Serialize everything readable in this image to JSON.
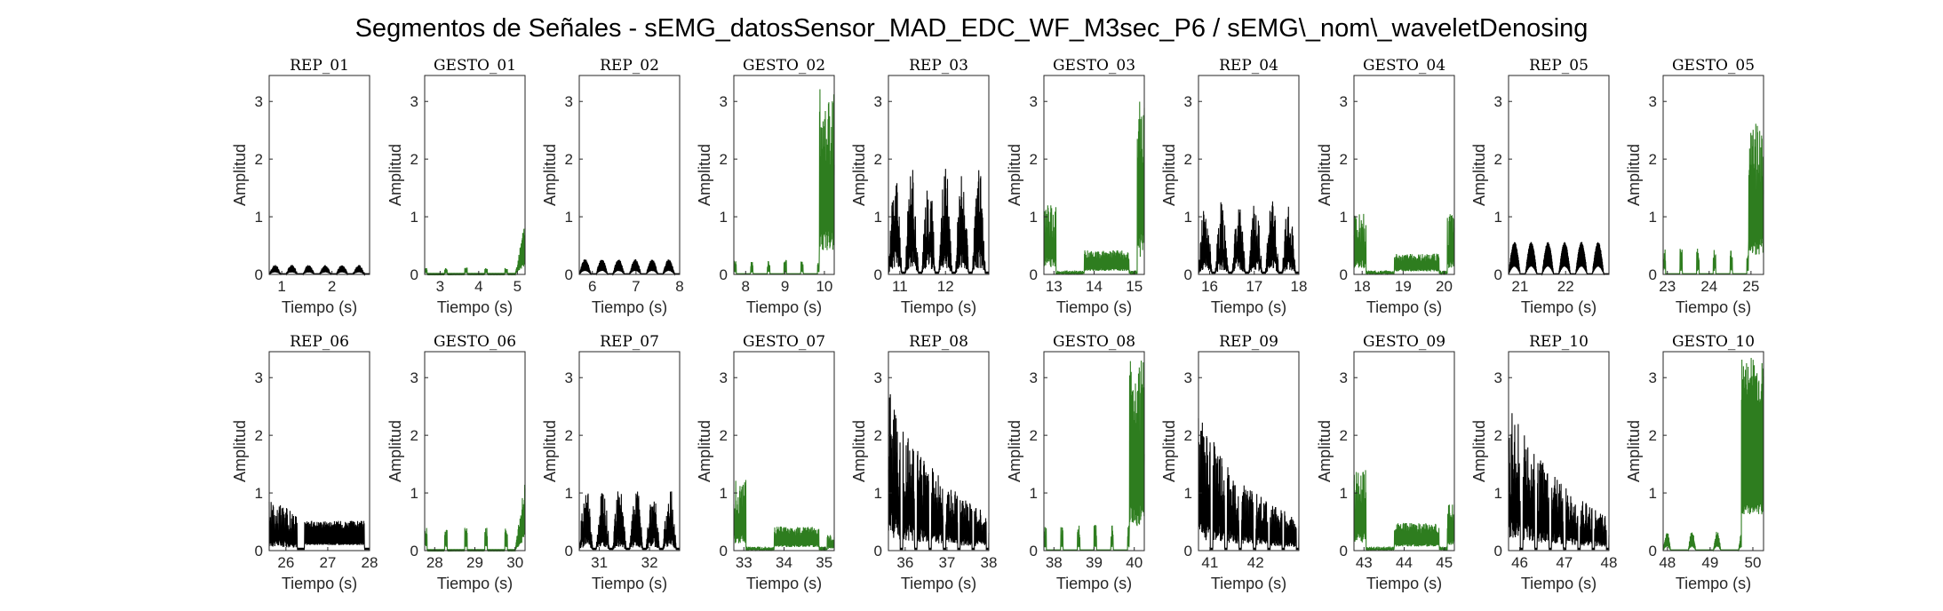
{
  "figure": {
    "title": "Segmentos de Señales - sEMG_datosSensor_MAD_EDC_WF_M3sec_P6 / sEMG\\_nom\\_waveletDenosing"
  },
  "colors": {
    "rep": "#000000",
    "gesto": "#2e7d1f"
  },
  "chart_data": [
    {
      "type": "line",
      "title": "REP_01",
      "xlabel": "Tiempo (s)",
      "ylabel": "Amplitud",
      "xlim": [
        0.75,
        2.75
      ],
      "ylim": [
        0,
        3.45
      ],
      "xticks": [
        1,
        2
      ],
      "yticks": [
        0,
        1,
        2,
        3
      ],
      "color": "rep",
      "pattern": "bumps",
      "level": 0.15,
      "peak": 0.3
    },
    {
      "type": "line",
      "title": "GESTO_01",
      "xlabel": "Tiempo (s)",
      "ylabel": "Amplitud",
      "xlim": [
        2.6,
        5.2
      ],
      "ylim": [
        0,
        3.45
      ],
      "xticks": [
        3,
        4,
        5
      ],
      "yticks": [
        0,
        1,
        2,
        3
      ],
      "color": "gesto",
      "pattern": "quietRise",
      "level": 0.12,
      "peak": 0.95
    },
    {
      "type": "line",
      "title": "REP_02",
      "xlabel": "Tiempo (s)",
      "ylabel": "Amplitud",
      "xlim": [
        5.7,
        8.0
      ],
      "ylim": [
        0,
        3.45
      ],
      "xticks": [
        6,
        7,
        8
      ],
      "yticks": [
        0,
        1,
        2,
        3
      ],
      "color": "rep",
      "pattern": "bumps",
      "level": 0.25,
      "peak": 0.3
    },
    {
      "type": "line",
      "title": "GESTO_02",
      "xlabel": "Tiempo (s)",
      "ylabel": "Amplitud",
      "xlim": [
        7.7,
        10.25
      ],
      "ylim": [
        0,
        3.45
      ],
      "xticks": [
        8,
        9,
        10
      ],
      "yticks": [
        0,
        1,
        2,
        3
      ],
      "color": "gesto",
      "pattern": "lateBurst",
      "level": 0.25,
      "peak": 3.3
    },
    {
      "type": "line",
      "title": "REP_03",
      "xlabel": "Tiempo (s)",
      "ylabel": "Amplitud",
      "xlim": [
        10.75,
        12.95
      ],
      "ylim": [
        0,
        3.45
      ],
      "xticks": [
        11,
        12
      ],
      "yticks": [
        0,
        1,
        2,
        3
      ],
      "color": "rep",
      "pattern": "dense",
      "level": 1.0,
      "peak": 1.85
    },
    {
      "type": "line",
      "title": "GESTO_03",
      "xlabel": "Tiempo (s)",
      "ylabel": "Amplitud",
      "xlim": [
        12.75,
        15.25
      ],
      "ylim": [
        0,
        3.45
      ],
      "xticks": [
        13,
        14,
        15
      ],
      "yticks": [
        0,
        1,
        2,
        3
      ],
      "color": "gesto",
      "pattern": "startLowEnd",
      "level": 0.35,
      "peak": 3.0
    },
    {
      "type": "line",
      "title": "REP_04",
      "xlabel": "Tiempo (s)",
      "ylabel": "Amplitud",
      "xlim": [
        15.75,
        18.0
      ],
      "ylim": [
        0,
        3.45
      ],
      "xticks": [
        16,
        17,
        18
      ],
      "yticks": [
        0,
        1,
        2,
        3
      ],
      "color": "rep",
      "pattern": "dense",
      "level": 0.7,
      "peak": 1.25
    },
    {
      "type": "line",
      "title": "GESTO_04",
      "xlabel": "Tiempo (s)",
      "ylabel": "Amplitud",
      "xlim": [
        17.8,
        20.25
      ],
      "ylim": [
        0,
        3.45
      ],
      "xticks": [
        18,
        19,
        20
      ],
      "yticks": [
        0,
        1,
        2,
        3
      ],
      "color": "gesto",
      "pattern": "startLowEnd",
      "level": 0.3,
      "peak": 1.05
    },
    {
      "type": "line",
      "title": "REP_05",
      "xlabel": "Tiempo (s)",
      "ylabel": "Amplitud",
      "xlim": [
        20.75,
        22.95
      ],
      "ylim": [
        0,
        3.45
      ],
      "xticks": [
        21,
        22
      ],
      "yticks": [
        0,
        1,
        2,
        3
      ],
      "color": "rep",
      "pattern": "bumps",
      "level": 0.55,
      "peak": 0.7
    },
    {
      "type": "line",
      "title": "GESTO_05",
      "xlabel": "Tiempo (s)",
      "ylabel": "Amplitud",
      "xlim": [
        22.9,
        25.3
      ],
      "ylim": [
        0,
        3.45
      ],
      "xticks": [
        23,
        24,
        25
      ],
      "yticks": [
        0,
        1,
        2,
        3
      ],
      "color": "gesto",
      "pattern": "lateBurst",
      "level": 0.45,
      "peak": 2.7
    },
    {
      "type": "line",
      "title": "REP_06",
      "xlabel": "Tiempo (s)",
      "ylabel": "Amplitud",
      "xlim": [
        25.6,
        28.0
      ],
      "ylim": [
        0,
        3.45
      ],
      "xticks": [
        26,
        27,
        28
      ],
      "yticks": [
        0,
        1,
        2,
        3
      ],
      "color": "rep",
      "pattern": "earlyBurstPlateau",
      "level": 0.45,
      "peak": 0.9
    },
    {
      "type": "line",
      "title": "GESTO_06",
      "xlabel": "Tiempo (s)",
      "ylabel": "Amplitud",
      "xlim": [
        27.75,
        30.25
      ],
      "ylim": [
        0,
        3.45
      ],
      "xticks": [
        28,
        29,
        30
      ],
      "yticks": [
        0,
        1,
        2,
        3
      ],
      "color": "gesto",
      "pattern": "quietRise",
      "level": 0.4,
      "peak": 1.35
    },
    {
      "type": "line",
      "title": "REP_07",
      "xlabel": "Tiempo (s)",
      "ylabel": "Amplitud",
      "xlim": [
        30.6,
        32.6
      ],
      "ylim": [
        0,
        3.45
      ],
      "xticks": [
        31,
        32
      ],
      "yticks": [
        0,
        1,
        2,
        3
      ],
      "color": "rep",
      "pattern": "dense",
      "level": 0.7,
      "peak": 1.1
    },
    {
      "type": "line",
      "title": "GESTO_07",
      "xlabel": "Tiempo (s)",
      "ylabel": "Amplitud",
      "xlim": [
        32.75,
        35.25
      ],
      "ylim": [
        0,
        3.45
      ],
      "xticks": [
        33,
        34,
        35
      ],
      "yticks": [
        0,
        1,
        2,
        3
      ],
      "color": "gesto",
      "pattern": "startLowEnd",
      "level": 0.35,
      "peak": 0.3
    },
    {
      "type": "line",
      "title": "REP_08",
      "xlabel": "Tiempo (s)",
      "ylabel": "Amplitud",
      "xlim": [
        35.6,
        38.0
      ],
      "ylim": [
        0,
        3.45
      ],
      "xticks": [
        36,
        37,
        38
      ],
      "yticks": [
        0,
        1,
        2,
        3
      ],
      "color": "rep",
      "pattern": "decay",
      "level": 2.7,
      "peak": 2.8
    },
    {
      "type": "line",
      "title": "GESTO_08",
      "xlabel": "Tiempo (s)",
      "ylabel": "Amplitud",
      "xlim": [
        37.75,
        40.25
      ],
      "ylim": [
        0,
        3.45
      ],
      "xticks": [
        38,
        39,
        40
      ],
      "yticks": [
        0,
        1,
        2,
        3
      ],
      "color": "gesto",
      "pattern": "lateBurst",
      "level": 0.45,
      "peak": 3.3
    },
    {
      "type": "line",
      "title": "REP_09",
      "xlabel": "Tiempo (s)",
      "ylabel": "Amplitud",
      "xlim": [
        40.75,
        42.95
      ],
      "ylim": [
        0,
        3.45
      ],
      "xticks": [
        41,
        42
      ],
      "yticks": [
        0,
        1,
        2,
        3
      ],
      "color": "rep",
      "pattern": "decay",
      "level": 2.3,
      "peak": 2.8
    },
    {
      "type": "line",
      "title": "GESTO_09",
      "xlabel": "Tiempo (s)",
      "ylabel": "Amplitud",
      "xlim": [
        42.75,
        45.25
      ],
      "ylim": [
        0,
        3.45
      ],
      "xticks": [
        43,
        44,
        45
      ],
      "yticks": [
        0,
        1,
        2,
        3
      ],
      "color": "gesto",
      "pattern": "startLowEnd",
      "level": 0.4,
      "peak": 0.8
    },
    {
      "type": "line",
      "title": "REP_10",
      "xlabel": "Tiempo (s)",
      "ylabel": "Amplitud",
      "xlim": [
        45.75,
        48.0
      ],
      "ylim": [
        0,
        3.45
      ],
      "xticks": [
        46,
        47,
        48
      ],
      "yticks": [
        0,
        1,
        2,
        3
      ],
      "color": "rep",
      "pattern": "decay",
      "level": 2.5,
      "peak": 2.8
    },
    {
      "type": "line",
      "title": "GESTO_10",
      "xlabel": "Tiempo (s)",
      "ylabel": "Amplitud",
      "xlim": [
        47.9,
        50.25
      ],
      "ylim": [
        0,
        3.45
      ],
      "xticks": [
        48,
        49,
        50
      ],
      "yticks": [
        0,
        1,
        2,
        3
      ],
      "color": "gesto",
      "pattern": "lateBlock",
      "level": 0.35,
      "peak": 3.35
    }
  ]
}
